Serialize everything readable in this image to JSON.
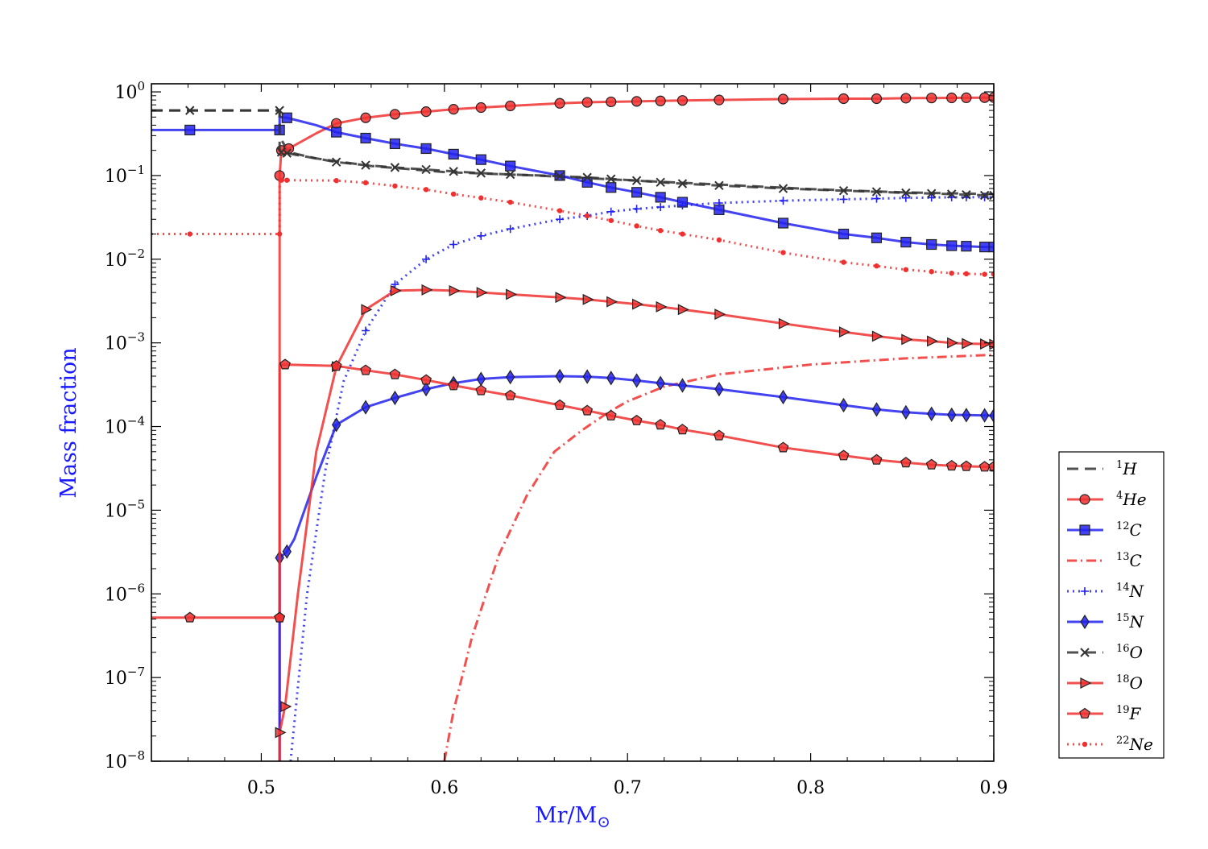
{
  "chart_data": {
    "type": "line",
    "xlabel": "Mr/M",
    "xlabel_sub": "⊙",
    "ylabel": "Mass fraction",
    "xlim": [
      0.44,
      0.9
    ],
    "ylim": [
      1e-08,
      1.25
    ],
    "yscale": "log",
    "x_ticks": [
      {
        "value": 0.5,
        "label": "0.5"
      },
      {
        "value": 0.6,
        "label": "0.6"
      },
      {
        "value": 0.7,
        "label": "0.7"
      },
      {
        "value": 0.8,
        "label": "0.8"
      },
      {
        "value": 0.9,
        "label": "0.9"
      }
    ],
    "y_ticks": [
      {
        "exp": 0,
        "base": "10",
        "sup": "0"
      },
      {
        "exp": -1,
        "base": "10",
        "sup": "−1"
      },
      {
        "exp": -2,
        "base": "10",
        "sup": "−2"
      },
      {
        "exp": -3,
        "base": "10",
        "sup": "−3"
      },
      {
        "exp": -4,
        "base": "10",
        "sup": "−4"
      },
      {
        "exp": -5,
        "base": "10",
        "sup": "−5"
      },
      {
        "exp": -6,
        "base": "10",
        "sup": "−6"
      },
      {
        "exp": -7,
        "base": "10",
        "sup": "−7"
      },
      {
        "exp": -8,
        "base": "10",
        "sup": "−8"
      }
    ],
    "grid": false,
    "legend_placement": "outside right, lower",
    "colors": {
      "black": "#333333",
      "red": "#f03030",
      "blue": "#2222ee"
    },
    "series": [
      {
        "name": "1H",
        "sup": "1",
        "base": "H",
        "color": "#333333",
        "dash": "14,8",
        "marker": "none",
        "x": [
          0.44,
          0.51,
          0.51,
          0.515,
          0.53,
          0.56,
          0.6,
          0.65,
          0.7,
          0.75,
          0.8,
          0.85,
          0.9
        ],
        "y": [
          0.6,
          0.6,
          0.29,
          0.19,
          0.16,
          0.13,
          0.11,
          0.1,
          0.088,
          0.078,
          0.069,
          0.063,
          0.06
        ]
      },
      {
        "name": "4He",
        "sup": "4",
        "base": "He",
        "color": "#f03030",
        "dash": "",
        "marker": "circle",
        "x": [
          0.51,
          0.51,
          0.511,
          0.515,
          0.53,
          0.541,
          0.557,
          0.573,
          0.59,
          0.605,
          0.62,
          0.636,
          0.663,
          0.678,
          0.691,
          0.705,
          0.718,
          0.73,
          0.75,
          0.785,
          0.818,
          0.836,
          0.852,
          0.866,
          0.877,
          0.885,
          0.895,
          0.9
        ],
        "y": [
          1e-08,
          0.1,
          0.2,
          0.21,
          0.32,
          0.42,
          0.49,
          0.54,
          0.58,
          0.62,
          0.65,
          0.68,
          0.73,
          0.75,
          0.76,
          0.77,
          0.78,
          0.79,
          0.8,
          0.82,
          0.83,
          0.83,
          0.84,
          0.845,
          0.848,
          0.85,
          0.853,
          0.855
        ],
        "markers_x": [
          0.51,
          0.511,
          0.515,
          0.541,
          0.557,
          0.573,
          0.59,
          0.605,
          0.62,
          0.636,
          0.663,
          0.678,
          0.691,
          0.705,
          0.718,
          0.73,
          0.75,
          0.785,
          0.818,
          0.836,
          0.852,
          0.866,
          0.877,
          0.885,
          0.895,
          0.9
        ]
      },
      {
        "name": "12C",
        "sup": "12",
        "base": "C",
        "color": "#2222ee",
        "dash": "",
        "marker": "square",
        "x": [
          0.44,
          0.461,
          0.51,
          0.51,
          0.514,
          0.53,
          0.541,
          0.557,
          0.573,
          0.59,
          0.605,
          0.62,
          0.636,
          0.663,
          0.678,
          0.691,
          0.705,
          0.718,
          0.73,
          0.75,
          0.785,
          0.818,
          0.836,
          0.852,
          0.866,
          0.877,
          0.885,
          0.895,
          0.9
        ],
        "y": [
          0.35,
          0.35,
          0.35,
          0.5,
          0.49,
          0.4,
          0.33,
          0.28,
          0.24,
          0.21,
          0.18,
          0.155,
          0.13,
          0.1,
          0.083,
          0.072,
          0.063,
          0.055,
          0.048,
          0.039,
          0.027,
          0.02,
          0.018,
          0.016,
          0.015,
          0.0145,
          0.0143,
          0.014,
          0.014
        ],
        "markers_x": [
          0.461,
          0.51,
          0.514,
          0.541,
          0.557,
          0.573,
          0.59,
          0.605,
          0.62,
          0.636,
          0.663,
          0.678,
          0.691,
          0.705,
          0.718,
          0.73,
          0.75,
          0.785,
          0.818,
          0.836,
          0.852,
          0.866,
          0.877,
          0.885,
          0.895,
          0.9
        ]
      },
      {
        "name": "13C",
        "sup": "13",
        "base": "C",
        "color": "#f03030",
        "dash": "12,5,2,5",
        "marker": "none",
        "x": [
          0.6,
          0.605,
          0.615,
          0.63,
          0.645,
          0.66,
          0.675,
          0.69,
          0.7,
          0.72,
          0.75,
          0.8,
          0.85,
          0.9
        ],
        "y": [
          1e-08,
          4e-08,
          3e-07,
          3e-06,
          1.5e-05,
          5e-05,
          9e-05,
          0.00015,
          0.0002,
          0.0003,
          0.00042,
          0.00055,
          0.00065,
          0.00072
        ]
      },
      {
        "name": "14N",
        "sup": "14",
        "base": "N",
        "color": "#2222ee",
        "dash": "2,5",
        "marker": "plus",
        "x": [
          0.516,
          0.525,
          0.535,
          0.545,
          0.557,
          0.573,
          0.59,
          0.605,
          0.62,
          0.636,
          0.663,
          0.678,
          0.691,
          0.705,
          0.718,
          0.73,
          0.75,
          0.785,
          0.818,
          0.836,
          0.852,
          0.866,
          0.877,
          0.885,
          0.895,
          0.9
        ],
        "y": [
          1e-08,
          1e-06,
          3e-05,
          0.00035,
          0.0014,
          0.005,
          0.01,
          0.015,
          0.019,
          0.023,
          0.03,
          0.033,
          0.037,
          0.04,
          0.042,
          0.044,
          0.047,
          0.05,
          0.052,
          0.053,
          0.054,
          0.0545,
          0.055,
          0.055,
          0.055,
          0.055
        ],
        "markers_x": [
          0.557,
          0.573,
          0.59,
          0.605,
          0.62,
          0.636,
          0.663,
          0.678,
          0.691,
          0.705,
          0.718,
          0.73,
          0.75,
          0.785,
          0.818,
          0.836,
          0.852,
          0.866,
          0.877,
          0.885,
          0.895,
          0.9
        ]
      },
      {
        "name": "15N",
        "sup": "15",
        "base": "N",
        "color": "#2222ee",
        "dash": "",
        "marker": "diamond",
        "x": [
          0.51,
          0.51,
          0.514,
          0.518,
          0.53,
          0.541,
          0.557,
          0.573,
          0.59,
          0.605,
          0.62,
          0.636,
          0.663,
          0.678,
          0.691,
          0.705,
          0.718,
          0.73,
          0.75,
          0.785,
          0.818,
          0.836,
          0.852,
          0.866,
          0.877,
          0.885,
          0.895,
          0.9
        ],
        "y": [
          1e-08,
          2.7e-06,
          3.2e-06,
          4.5e-06,
          2.5e-05,
          0.000105,
          0.00017,
          0.00022,
          0.00028,
          0.00033,
          0.00037,
          0.00039,
          0.0004,
          0.000395,
          0.00038,
          0.000355,
          0.00033,
          0.00031,
          0.00028,
          0.000225,
          0.00018,
          0.00016,
          0.000148,
          0.000142,
          0.000138,
          0.000137,
          0.000136,
          0.000135
        ],
        "markers_x": [
          0.51,
          0.514,
          0.541,
          0.557,
          0.573,
          0.59,
          0.605,
          0.62,
          0.636,
          0.663,
          0.678,
          0.691,
          0.705,
          0.718,
          0.73,
          0.75,
          0.785,
          0.818,
          0.836,
          0.852,
          0.866,
          0.877,
          0.885,
          0.895,
          0.9
        ]
      },
      {
        "name": "16O",
        "sup": "16",
        "base": "O",
        "color": "#333333",
        "dash": "14,8",
        "marker": "x",
        "x": [
          0.44,
          0.461,
          0.51,
          0.51,
          0.511,
          0.514,
          0.541,
          0.557,
          0.573,
          0.59,
          0.605,
          0.62,
          0.636,
          0.663,
          0.678,
          0.691,
          0.705,
          0.718,
          0.73,
          0.75,
          0.785,
          0.818,
          0.836,
          0.852,
          0.866,
          0.877,
          0.885,
          0.895,
          0.9
        ],
        "y": [
          0.6,
          0.6,
          0.6,
          0.2,
          0.19,
          0.185,
          0.145,
          0.133,
          0.125,
          0.118,
          0.112,
          0.107,
          0.103,
          0.098,
          0.095,
          0.091,
          0.087,
          0.083,
          0.08,
          0.076,
          0.07,
          0.066,
          0.064,
          0.062,
          0.061,
          0.06,
          0.059,
          0.058,
          0.058
        ],
        "markers_x": [
          0.461,
          0.51,
          0.511,
          0.514,
          0.541,
          0.557,
          0.573,
          0.59,
          0.605,
          0.62,
          0.636,
          0.663,
          0.678,
          0.691,
          0.705,
          0.718,
          0.73,
          0.75,
          0.785,
          0.818,
          0.836,
          0.852,
          0.866,
          0.877,
          0.885,
          0.895,
          0.9
        ]
      },
      {
        "name": "18O",
        "sup": "18",
        "base": "O",
        "color": "#f03030",
        "dash": "",
        "marker": "triangle-right",
        "x": [
          0.51,
          0.51,
          0.513,
          0.52,
          0.53,
          0.541,
          0.557,
          0.573,
          0.59,
          0.605,
          0.62,
          0.636,
          0.663,
          0.678,
          0.691,
          0.705,
          0.718,
          0.73,
          0.75,
          0.785,
          0.818,
          0.836,
          0.852,
          0.866,
          0.877,
          0.885,
          0.895,
          0.9
        ],
        "y": [
          1e-08,
          2.2e-08,
          4.5e-08,
          1e-06,
          5e-05,
          0.00052,
          0.0025,
          0.0042,
          0.0043,
          0.0042,
          0.004,
          0.0038,
          0.0035,
          0.0033,
          0.0031,
          0.0029,
          0.0027,
          0.0025,
          0.0022,
          0.0017,
          0.00135,
          0.0012,
          0.0011,
          0.00105,
          0.001,
          0.00098,
          0.00097,
          0.00096
        ],
        "markers_x": [
          0.51,
          0.513,
          0.541,
          0.557,
          0.573,
          0.59,
          0.605,
          0.62,
          0.636,
          0.663,
          0.678,
          0.691,
          0.705,
          0.718,
          0.73,
          0.75,
          0.785,
          0.818,
          0.836,
          0.852,
          0.866,
          0.877,
          0.885,
          0.895,
          0.9
        ]
      },
      {
        "name": "19F",
        "sup": "19",
        "base": "F",
        "color": "#f03030",
        "dash": "",
        "marker": "pentagon",
        "x": [
          0.44,
          0.461,
          0.51,
          0.51,
          0.51,
          0.513,
          0.541,
          0.557,
          0.573,
          0.59,
          0.605,
          0.62,
          0.636,
          0.663,
          0.678,
          0.691,
          0.705,
          0.718,
          0.73,
          0.75,
          0.785,
          0.818,
          0.836,
          0.852,
          0.866,
          0.877,
          0.885,
          0.895,
          0.9
        ],
        "y": [
          5.2e-07,
          5.2e-07,
          5.2e-07,
          0.0004,
          0.00055,
          0.00055,
          0.00053,
          0.00047,
          0.00042,
          0.00036,
          0.00031,
          0.00027,
          0.000235,
          0.00018,
          0.000155,
          0.000135,
          0.000118,
          0.000105,
          9.2e-05,
          7.8e-05,
          5.6e-05,
          4.5e-05,
          4e-05,
          3.7e-05,
          3.5e-05,
          3.4e-05,
          3.35e-05,
          3.3e-05,
          3.3e-05
        ],
        "markers_x": [
          0.461,
          0.51,
          0.51,
          0.513,
          0.541,
          0.557,
          0.573,
          0.59,
          0.605,
          0.62,
          0.636,
          0.663,
          0.678,
          0.691,
          0.705,
          0.718,
          0.73,
          0.75,
          0.785,
          0.818,
          0.836,
          0.852,
          0.866,
          0.877,
          0.885,
          0.895,
          0.9
        ]
      },
      {
        "name": "22Ne",
        "sup": "22",
        "base": "Ne",
        "color": "#f03030",
        "dash": "2,5",
        "marker": "dot",
        "x": [
          0.44,
          0.461,
          0.51,
          0.51,
          0.511,
          0.514,
          0.541,
          0.557,
          0.573,
          0.59,
          0.605,
          0.62,
          0.636,
          0.663,
          0.678,
          0.691,
          0.705,
          0.718,
          0.73,
          0.75,
          0.785,
          0.818,
          0.836,
          0.852,
          0.866,
          0.877,
          0.885,
          0.895,
          0.9
        ],
        "y": [
          0.02,
          0.02,
          0.02,
          0.09,
          0.088,
          0.088,
          0.087,
          0.082,
          0.075,
          0.068,
          0.06,
          0.054,
          0.048,
          0.038,
          0.033,
          0.029,
          0.025,
          0.022,
          0.02,
          0.017,
          0.012,
          0.0092,
          0.0083,
          0.0075,
          0.0071,
          0.0068,
          0.0067,
          0.0066,
          0.0066
        ],
        "markers_x": [
          0.461,
          0.51,
          0.511,
          0.514,
          0.541,
          0.557,
          0.573,
          0.59,
          0.605,
          0.62,
          0.636,
          0.663,
          0.678,
          0.691,
          0.705,
          0.718,
          0.73,
          0.75,
          0.785,
          0.818,
          0.836,
          0.852,
          0.866,
          0.877,
          0.885,
          0.895,
          0.9
        ]
      }
    ]
  }
}
